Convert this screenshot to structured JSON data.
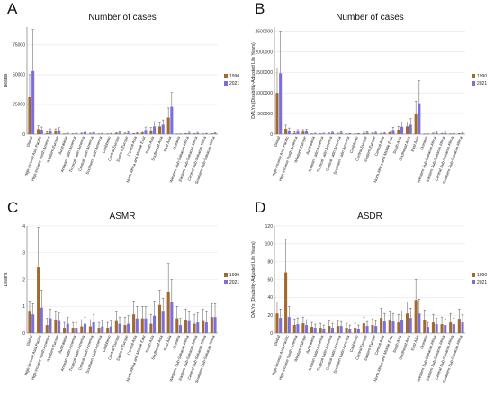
{
  "chart_data": [
    {
      "panel_letter": "A",
      "type": "bar",
      "title": "Number of cases",
      "ylabel": "Deaths",
      "ylim": [
        0,
        90000
      ],
      "yticks": [
        0,
        25000,
        50000,
        75000
      ],
      "categories": [
        "Global",
        "High-income Asia Pacific",
        "High-income North America",
        "Western Europe",
        "Australasia",
        "Andean Latin America",
        "Tropical Latin America",
        "Central Latin America",
        "Southern Latin America",
        "Caribbean",
        "Central Europe",
        "Eastern Europe",
        "Central Asia",
        "North Africa and Middle East",
        "South Asia",
        "Southeast Asia",
        "East Asia",
        "Oceania",
        "Western Sub-Saharan Africa",
        "Eastern Sub-Saharan Africa",
        "Central Sub-Saharan Africa",
        "Southern Sub-Saharan Africa"
      ],
      "series": [
        {
          "name": "1990",
          "color": "#a06a2c",
          "values": [
            31000,
            4200,
            900,
            2800,
            150,
            180,
            500,
            400,
            120,
            120,
            700,
            500,
            300,
            1400,
            3200,
            6500,
            14000,
            50,
            300,
            250,
            100,
            250
          ],
          "upper": [
            50000,
            7000,
            2000,
            4500,
            300,
            350,
            900,
            800,
            250,
            250,
            1200,
            900,
            600,
            2500,
            5500,
            9500,
            22000,
            120,
            600,
            500,
            250,
            500
          ]
        },
        {
          "name": "2021",
          "color": "#7b6fe0",
          "values": [
            53000,
            3800,
            2600,
            3300,
            500,
            450,
            1800,
            1400,
            350,
            350,
            1200,
            1100,
            700,
            3500,
            6500,
            8000,
            23000,
            150,
            900,
            800,
            350,
            700
          ],
          "upper": [
            88000,
            6000,
            4500,
            5500,
            900,
            800,
            2800,
            2400,
            700,
            700,
            2000,
            2000,
            1300,
            6000,
            10500,
            12000,
            35000,
            300,
            1600,
            1500,
            700,
            1300
          ]
        }
      ]
    },
    {
      "panel_letter": "B",
      "type": "bar",
      "title": "Number of cases",
      "ylabel": "DALYs (Disability-Adjusted Life Years)",
      "ylim": [
        0,
        2600000
      ],
      "yticks": [
        0,
        500000,
        1000000,
        1500000,
        2000000,
        2500000
      ],
      "categories": [
        "Global",
        "High-income Asia Pacific",
        "High-income North America",
        "Western Europe",
        "Australasia",
        "Andean Latin America",
        "Tropical Latin America",
        "Central Latin America",
        "Southern Latin America",
        "Caribbean",
        "Central Europe",
        "Eastern Europe",
        "Central Asia",
        "North Africa and Middle East",
        "South Asia",
        "Southeast Asia",
        "East Asia",
        "Oceania",
        "Western Sub-Saharan Africa",
        "Eastern Sub-Saharan Africa",
        "Central Sub-Saharan Africa",
        "Southern Sub-Saharan Africa"
      ],
      "series": [
        {
          "name": "1990",
          "color": "#a06a2c",
          "values": [
            1000000,
            130000,
            25000,
            60000,
            5000,
            6000,
            15000,
            12000,
            4000,
            4000,
            25000,
            18000,
            12000,
            45000,
            110000,
            190000,
            480000,
            2000,
            12000,
            10000,
            4000,
            8000
          ],
          "upper": [
            1600000,
            220000,
            60000,
            110000,
            10000,
            12000,
            28000,
            24000,
            8000,
            8000,
            45000,
            35000,
            22000,
            80000,
            190000,
            300000,
            800000,
            5000,
            25000,
            20000,
            9000,
            16000
          ]
        },
        {
          "name": "2021",
          "color": "#7b6fe0",
          "values": [
            1480000,
            90000,
            60000,
            70000,
            12000,
            13000,
            40000,
            35000,
            9000,
            9000,
            35000,
            35000,
            22000,
            100000,
            180000,
            230000,
            750000,
            5000,
            30000,
            25000,
            10000,
            20000
          ],
          "upper": [
            2500000,
            150000,
            110000,
            120000,
            22000,
            24000,
            65000,
            60000,
            16000,
            16000,
            60000,
            65000,
            40000,
            170000,
            300000,
            380000,
            1300000,
            10000,
            55000,
            45000,
            20000,
            38000
          ]
        }
      ]
    },
    {
      "panel_letter": "C",
      "type": "bar",
      "title": "ASMR",
      "ylabel": "Deaths",
      "ylim": [
        0,
        4
      ],
      "yticks": [
        0,
        1,
        2,
        3,
        4
      ],
      "categories": [
        "Global",
        "High-income Asia Pacific",
        "High-income North America",
        "Western Europe",
        "Australasia",
        "Andean Latin America",
        "Tropical Latin America",
        "Central Latin America",
        "Southern Latin America",
        "Caribbean",
        "Central Europe",
        "Eastern Europe",
        "Central Asia",
        "North Africa and Middle East",
        "South Asia",
        "Southeast Asia",
        "East Asia",
        "Oceania",
        "Western Sub-Saharan Africa",
        "Eastern Sub-Saharan Africa",
        "Central Sub-Saharan Africa",
        "Southern Sub-Saharan Africa"
      ],
      "series": [
        {
          "name": "1990",
          "color": "#a06a2c",
          "values": [
            0.8,
            2.45,
            0.3,
            0.5,
            0.2,
            0.2,
            0.25,
            0.25,
            0.2,
            0.2,
            0.45,
            0.3,
            0.7,
            0.55,
            0.35,
            1.05,
            1.55,
            0.55,
            0.5,
            0.35,
            0.45,
            0.6
          ],
          "upper": [
            1.2,
            3.95,
            0.55,
            0.8,
            0.4,
            0.4,
            0.5,
            0.5,
            0.4,
            0.4,
            0.8,
            0.6,
            1.2,
            1.0,
            0.7,
            1.6,
            2.6,
            1.0,
            0.9,
            0.7,
            0.9,
            1.1
          ]
        },
        {
          "name": "2021",
          "color": "#7b6fe0",
          "values": [
            0.7,
            0.95,
            0.55,
            0.45,
            0.35,
            0.2,
            0.35,
            0.4,
            0.25,
            0.25,
            0.35,
            0.35,
            0.55,
            0.55,
            0.65,
            0.8,
            1.15,
            0.3,
            0.45,
            0.4,
            0.4,
            0.6
          ],
          "upper": [
            1.1,
            1.6,
            0.9,
            0.75,
            0.6,
            0.4,
            0.6,
            0.7,
            0.45,
            0.45,
            0.6,
            0.65,
            1.0,
            1.0,
            1.2,
            1.3,
            2.0,
            0.55,
            0.8,
            0.75,
            0.8,
            1.1
          ]
        }
      ]
    },
    {
      "panel_letter": "D",
      "type": "bar",
      "title": "ASDR",
      "ylabel": "DALYs (Disability-Adjusted Life Years)",
      "ylim": [
        0,
        120
      ],
      "yticks": [
        0,
        20,
        40,
        60,
        80,
        100,
        120
      ],
      "categories": [
        "Global",
        "High-income Asia Pacific",
        "High-income North America",
        "Western Europe",
        "Australasia",
        "Andean Latin America",
        "Tropical Latin America",
        "Central Latin America",
        "Southern Latin America",
        "Caribbean",
        "Central Europe",
        "Eastern Europe",
        "Central Asia",
        "North Africa and Middle East",
        "South Asia",
        "Southeast Asia",
        "East Asia",
        "Oceania",
        "Western Sub-Saharan Africa",
        "Eastern Sub-Saharan Africa",
        "Central Sub-Saharan Africa",
        "Southern Sub-Saharan Africa"
      ],
      "series": [
        {
          "name": "1990",
          "color": "#a06a2c",
          "values": [
            22,
            68,
            9,
            11,
            7,
            6,
            8,
            8,
            6,
            6,
            11,
            9,
            17,
            14,
            12,
            22,
            37,
            15,
            12,
            10,
            12,
            16
          ],
          "upper": [
            35,
            105,
            16,
            18,
            12,
            11,
            14,
            14,
            11,
            11,
            18,
            16,
            28,
            24,
            21,
            35,
            60,
            26,
            21,
            18,
            22,
            27
          ]
        },
        {
          "name": "2021",
          "color": "#7b6fe0",
          "values": [
            17,
            18,
            10,
            9,
            6,
            5,
            6,
            8,
            5,
            5,
            8,
            8,
            13,
            13,
            15,
            17,
            22,
            7,
            10,
            9,
            10,
            12
          ],
          "upper": [
            27,
            30,
            17,
            15,
            10,
            9,
            11,
            13,
            9,
            9,
            13,
            14,
            22,
            22,
            25,
            28,
            38,
            12,
            17,
            16,
            17,
            21
          ]
        }
      ]
    }
  ]
}
